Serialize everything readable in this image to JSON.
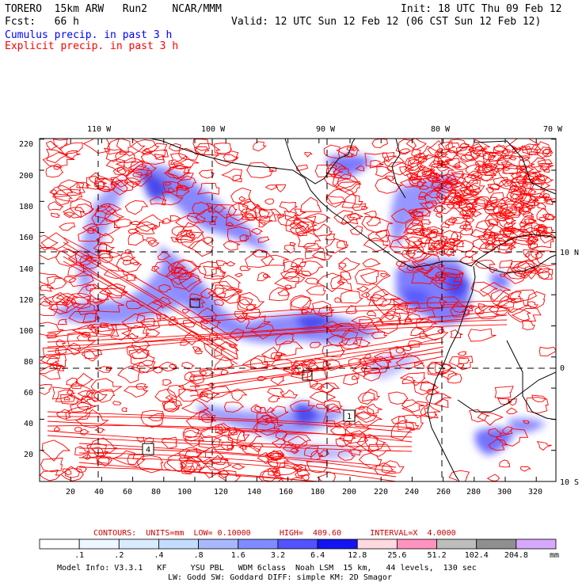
{
  "header": {
    "line1_left": "TORERO  15km ARW   Run2    NCAR/MMM",
    "line1_right": "Init: 18 UTC Thu 09 Feb 12",
    "line2_left": "Fcst:   66 h",
    "line2_right": "Valid: 12 UTC Sun 12 Feb 12 (06 CST Sun 12 Feb 12)",
    "legend_cumulus": "Cumulus precip. in past 3 h",
    "legend_explicit": "Explicit precip. in past 3 h"
  },
  "map": {
    "lon_labels": [
      "110 W",
      "100 W",
      "90 W",
      "80 W",
      "70 W"
    ],
    "lat_labels": [
      "10 N",
      "0",
      "10 S"
    ],
    "y_ticks": [
      "220",
      "200",
      "180",
      "160",
      "140",
      "120",
      "100",
      "80",
      "60",
      "40",
      "20"
    ],
    "x_ticks": [
      "20",
      "40",
      "60",
      "80",
      "100",
      "120",
      "140",
      "160",
      "180",
      "200",
      "220",
      "240",
      "260",
      "280",
      "300",
      "320"
    ],
    "low_boxes": [
      "4",
      "1"
    ],
    "colors": {
      "cumulus": "#3a3aff",
      "explicit": "#ff0000",
      "coast": "#000000"
    }
  },
  "contour_info": {
    "label": "CONTOURS:",
    "units": "UNITS=mm",
    "low": "LOW= 0.10000",
    "high": "HIGH=  409.60",
    "interval": "INTERVAL=X  4.0000"
  },
  "colorbar": {
    "unit": "mm",
    "labels": [
      ".1",
      ".2",
      ".4",
      ".8",
      "1.6",
      "3.2",
      "6.4",
      "12.8",
      "25.6",
      "51.2",
      "102.4",
      "204.8"
    ],
    "colors": [
      "#ffffff",
      "#eef6ff",
      "#d9ecff",
      "#c4dcff",
      "#a7b8ff",
      "#7f8cff",
      "#5252ff",
      "#1414f0",
      "#ffd9e0",
      "#ff92bf",
      "#bdbdbd",
      "#8f8f8f",
      "#d7a8ff"
    ]
  },
  "footer": {
    "line1": "Model Info: V3.3.1   KF     YSU PBL   WDM 6class  Noah LSM  15 km,   44 levels,  130 sec",
    "line2": "LW: Godd SW: Goddard DIFF: simple KM: 2D Smagor"
  }
}
